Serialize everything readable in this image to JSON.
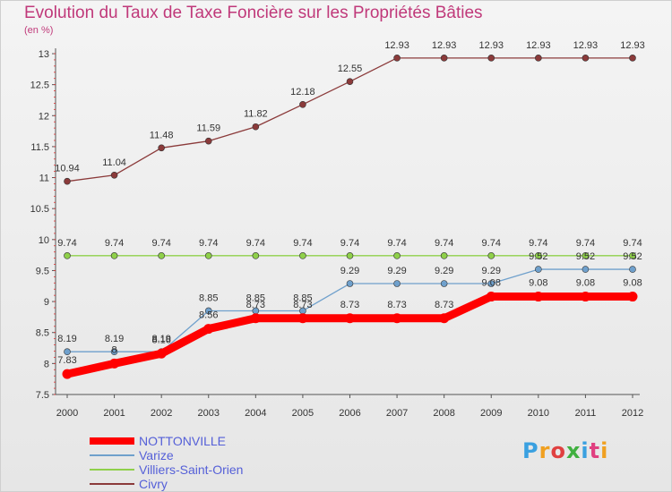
{
  "chart_data": {
    "type": "line",
    "title": "Evolution du Taux de Taxe Foncière sur les Propriétés Bâties",
    "unit_label": "(en %)",
    "x": [
      2000,
      2001,
      2002,
      2003,
      2004,
      2005,
      2006,
      2007,
      2008,
      2009,
      2010,
      2011,
      2012
    ],
    "ylim": [
      7.5,
      13
    ],
    "yticks": [
      7.5,
      8,
      8.5,
      9,
      9.5,
      10,
      10.5,
      11,
      11.5,
      12,
      12.5,
      13
    ],
    "grid": false,
    "legend_position": "bottom-left",
    "series": [
      {
        "name": "NOTTONVILLE",
        "color": "#ff0000",
        "values": [
          7.83,
          8.0,
          8.16,
          8.56,
          8.73,
          8.73,
          8.73,
          8.73,
          8.73,
          9.08,
          9.08,
          9.08,
          9.08
        ],
        "labels": [
          "7.83",
          "8",
          "8.16",
          "8.56",
          "8.73",
          "8.73",
          "8.73",
          "8.73",
          "8.73",
          "9.08",
          "9.08",
          "9.08",
          "9.08"
        ]
      },
      {
        "name": "Varize",
        "color": "#6fa0cc",
        "values": [
          8.19,
          8.19,
          8.19,
          8.85,
          8.85,
          8.85,
          9.29,
          9.29,
          9.29,
          9.29,
          9.52,
          9.52,
          9.52
        ],
        "labels": [
          "8.19",
          "8.19",
          "8.19",
          "8.85",
          "8.85",
          "8.85",
          "9.29",
          "9.29",
          "9.29",
          "9.29",
          "9.52",
          "9.52",
          "9.52"
        ]
      },
      {
        "name": "Villiers-Saint-Orien",
        "color": "#8fd04a",
        "values": [
          9.74,
          9.74,
          9.74,
          9.74,
          9.74,
          9.74,
          9.74,
          9.74,
          9.74,
          9.74,
          9.74,
          9.74,
          9.74
        ],
        "labels": [
          "9.74",
          "9.74",
          "9.74",
          "9.74",
          "9.74",
          "9.74",
          "9.74",
          "9.74",
          "9.74",
          "9.74",
          "9.74",
          "9.74",
          "9.74"
        ]
      },
      {
        "name": "Civry",
        "color": "#8b3a3a",
        "values": [
          10.94,
          11.04,
          11.48,
          11.59,
          11.82,
          12.18,
          12.55,
          12.93,
          12.93,
          12.93,
          12.93,
          12.93,
          12.93
        ],
        "labels": [
          "10.94",
          "11.04",
          "11.48",
          "11.59",
          "11.82",
          "12.18",
          "12.55",
          "12.93",
          "12.93",
          "12.93",
          "12.93",
          "12.93",
          "12.93"
        ]
      }
    ]
  },
  "logo": {
    "text": "Proxiti",
    "colors": [
      "#3aa0e0",
      "#f0a020",
      "#e04040",
      "#40b040",
      "#3aa0e0",
      "#e04080",
      "#f0a020"
    ]
  }
}
